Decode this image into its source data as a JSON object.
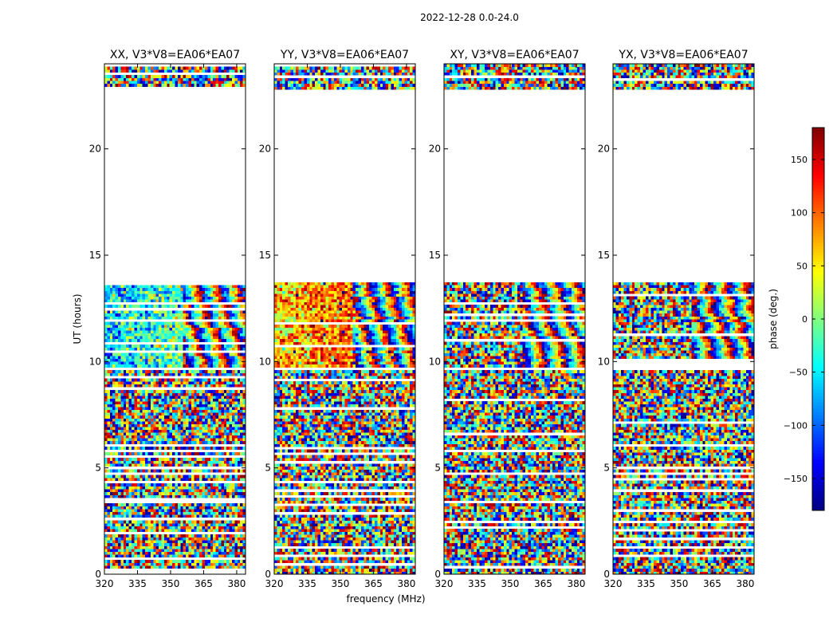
{
  "chart_data": {
    "type": "heatmap",
    "suptitle": "2022-12-28 0.0-24.0",
    "xlabel": "frequency (MHz)",
    "ylabel": "UT (hours)",
    "xlim": [
      320,
      384
    ],
    "ylim": [
      0,
      24
    ],
    "xticks": [
      320,
      335,
      350,
      365,
      380
    ],
    "yticks": [
      0,
      5,
      10,
      15,
      20
    ],
    "observed_ut_ranges": [
      [
        0,
        9.6
      ],
      [
        9.7,
        13.7
      ],
      [
        22.8,
        24
      ]
    ],
    "panels": [
      {
        "title": "XX, V3*V8=EA06*EA07",
        "pol": "XX",
        "mean_phase_deg": -60,
        "coherent_region": {
          "ut": [
            9.7,
            13.7
          ],
          "freq": [
            320,
            364
          ]
        },
        "fringe_region": {
          "ut": [
            9.7,
            13.7
          ],
          "freq": [
            356,
            384
          ]
        }
      },
      {
        "title": "YY, V3*V8=EA06*EA07",
        "pol": "YY",
        "mean_phase_deg": 60,
        "coherent_region": {
          "ut": [
            9.7,
            13.7
          ],
          "freq": [
            320,
            364
          ]
        },
        "fringe_region": {
          "ut": [
            9.7,
            13.7
          ],
          "freq": [
            356,
            384
          ]
        }
      },
      {
        "title": "XY, V3*V8=EA06*EA07",
        "pol": "XY",
        "mean_phase_deg": 0,
        "coherent_region": null,
        "fringe_region": {
          "ut": [
            9.7,
            13.7
          ],
          "freq": [
            356,
            384
          ]
        }
      },
      {
        "title": "YX, V3*V8=EA06*EA07",
        "pol": "YX",
        "mean_phase_deg": 0,
        "coherent_region": null,
        "fringe_region": {
          "ut": [
            9.7,
            13.7
          ],
          "freq": [
            356,
            384
          ]
        }
      }
    ],
    "colorbar": {
      "label": "phase (deg.)",
      "range": [
        -180,
        180
      ],
      "ticks": [
        -150,
        -100,
        -50,
        0,
        50,
        100,
        150
      ],
      "tick_labels": [
        "−150",
        "−100",
        "−50",
        "0",
        "50",
        "100",
        "150"
      ],
      "cmap": "jet"
    }
  }
}
